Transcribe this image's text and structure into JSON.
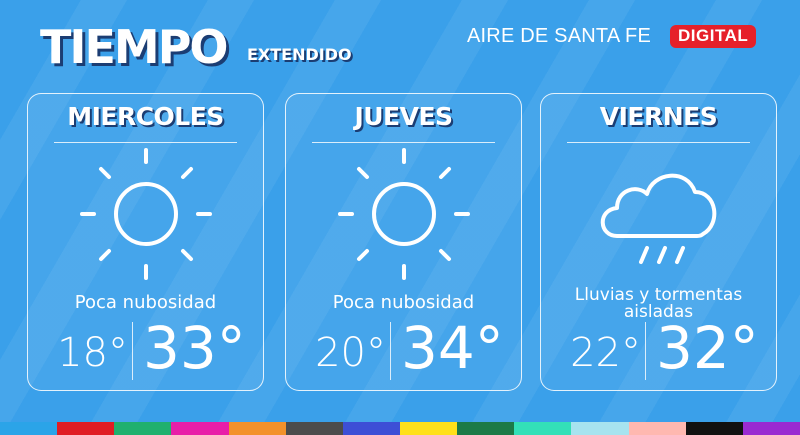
{
  "header": {
    "title": "TIEMPO",
    "subtitle": "EXTENDIDO",
    "brand": "AIRE DE SANTA FE",
    "badge": "DIGITAL"
  },
  "days": [
    {
      "day": "MIERCOLES",
      "icon": "sun-icon",
      "condition": "Poca nubosidad",
      "min": "18°",
      "max": "33°"
    },
    {
      "day": "JUEVES",
      "icon": "sun-icon",
      "condition": "Poca nubosidad",
      "min": "20°",
      "max": "34°"
    },
    {
      "day": "VIERNES",
      "icon": "rain-cloud-icon",
      "condition": "Lluvias y tormentas aisladas",
      "min": "22°",
      "max": "32°"
    }
  ],
  "colors": {
    "background": "#3aa0ea",
    "badge": "#e6202a",
    "footer_stripes": [
      "#2ba4e8",
      "#e01c24",
      "#20b06e",
      "#e81ea8",
      "#f3912a",
      "#4c4c4c",
      "#3d4fd6",
      "#ffe01a",
      "#1c7a47",
      "#33e0b8",
      "#a7e3ef",
      "#ffb8b0",
      "#111111",
      "#9a2ad1"
    ]
  }
}
